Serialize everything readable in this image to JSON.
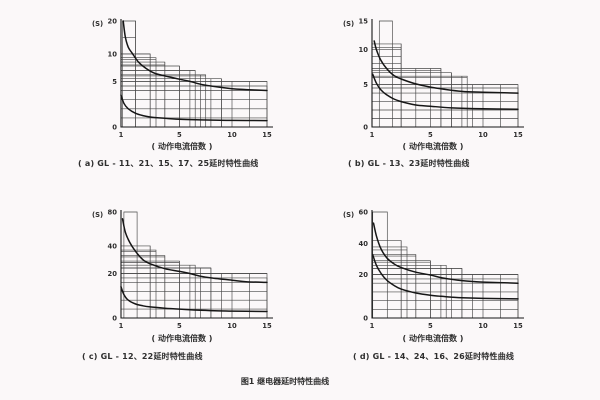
{
  "page": {
    "figure_caption": "图1  继电器延时特性曲线"
  },
  "chart_data": [
    {
      "type": "line",
      "title": "( a) GL - 11、21、15、17、25延时特性曲线",
      "xlabel": "( 动作电流倍数 )",
      "ylabel": "(S)",
      "xlim": [
        1,
        15
      ],
      "ylim": [
        0,
        20
      ],
      "x_ticks": [
        1,
        5,
        10,
        15
      ],
      "y_ticks": [
        0,
        5,
        10,
        20
      ],
      "grid": true,
      "legend_position": "none",
      "x_scale_anchors": [
        [
          1,
          0
        ],
        [
          5,
          0.4
        ],
        [
          10,
          0.76
        ],
        [
          15,
          1
        ]
      ],
      "y_scale_anchors": [
        [
          0,
          0
        ],
        [
          5,
          0.43
        ],
        [
          10,
          0.69
        ],
        [
          20,
          1
        ]
      ],
      "x_grid": [
        2,
        3,
        4,
        5,
        6,
        7,
        8,
        9,
        10,
        12.5
      ],
      "y_grid": [
        1,
        2,
        3,
        4,
        5,
        6,
        7,
        8,
        9,
        10,
        15
      ],
      "tolerance_steps": [
        [
          1.1,
          2,
          20
        ],
        [
          1,
          3,
          10
        ],
        [
          1,
          3.4,
          9.3
        ],
        [
          1,
          4,
          8.5
        ],
        [
          1,
          5,
          7.8
        ],
        [
          1,
          6.5,
          7
        ],
        [
          1,
          7.5,
          6.2
        ],
        [
          1,
          9,
          5.5
        ],
        [
          1,
          15,
          5
        ],
        [
          1,
          15,
          4.5
        ]
      ],
      "series": [
        {
          "name": "upper-limit",
          "x": [
            1.15,
            1.3,
            1.5,
            1.8,
            2.2,
            2.7,
            3.3,
            4,
            5,
            6,
            7,
            8,
            10,
            12,
            15
          ],
          "y": [
            20,
            15,
            12,
            10,
            8.5,
            7.4,
            6.5,
            6,
            5.4,
            5,
            4.7,
            4.5,
            4.2,
            4.1,
            4
          ]
        },
        {
          "name": "lower-limit",
          "x": [
            1,
            1.2,
            1.5,
            2,
            2.5,
            3,
            4,
            5,
            7,
            10,
            15
          ],
          "y": [
            3.5,
            2.6,
            2,
            1.5,
            1.25,
            1.1,
            0.95,
            0.85,
            0.78,
            0.72,
            0.7
          ]
        }
      ]
    },
    {
      "type": "line",
      "title": "( b) GL - 13、23延时特性曲线",
      "xlabel": "( 动作电流倍数 )",
      "ylabel": "(S)",
      "xlim": [
        1,
        15
      ],
      "ylim": [
        0,
        15
      ],
      "x_ticks": [
        1,
        5,
        10,
        15
      ],
      "y_ticks": [
        0,
        5,
        10,
        15
      ],
      "grid": true,
      "legend_position": "none",
      "x_scale_anchors": [
        [
          1,
          0
        ],
        [
          5,
          0.4
        ],
        [
          10,
          0.76
        ],
        [
          15,
          1
        ]
      ],
      "y_scale_anchors": [
        [
          0,
          0
        ],
        [
          5,
          0.4
        ],
        [
          10,
          0.73
        ],
        [
          15,
          1
        ]
      ],
      "x_grid": [
        3,
        4,
        5,
        6,
        7,
        8,
        9,
        10,
        12.5
      ],
      "y_grid": [
        1,
        2,
        3,
        4,
        5,
        6,
        7,
        8,
        9,
        10
      ],
      "tolerance_steps": [
        [
          1.5,
          2.4,
          15
        ],
        [
          1,
          3,
          11
        ],
        [
          1,
          3,
          10.4
        ],
        [
          1,
          6,
          7.3
        ],
        [
          1,
          7,
          6.7
        ],
        [
          1,
          8.5,
          6.2
        ],
        [
          1,
          15,
          5
        ],
        [
          1,
          15,
          4.6
        ]
      ],
      "series": [
        {
          "name": "upper-limit",
          "x": [
            1.15,
            1.3,
            1.6,
            2,
            2.5,
            3,
            4,
            5,
            6,
            8,
            10,
            15
          ],
          "y": [
            11.5,
            10,
            8.5,
            7.3,
            6.3,
            5.8,
            5.1,
            4.7,
            4.5,
            4.2,
            4.1,
            4
          ]
        },
        {
          "name": "lower-limit",
          "x": [
            1.05,
            1.3,
            1.6,
            2,
            2.5,
            3,
            4,
            5,
            7,
            10,
            15
          ],
          "y": [
            6.5,
            5.2,
            4.4,
            3.8,
            3.3,
            3,
            2.6,
            2.45,
            2.25,
            2.15,
            2.1
          ]
        }
      ]
    },
    {
      "type": "line",
      "title": "( c) GL - 12、22延时特性曲线",
      "xlabel": "( 动作电流倍数 )",
      "ylabel": "(S)",
      "xlim": [
        1,
        15
      ],
      "ylim": [
        0,
        80
      ],
      "x_ticks": [
        1,
        5,
        10,
        15
      ],
      "y_ticks": [
        0,
        20,
        40,
        80
      ],
      "grid": true,
      "legend_position": "none",
      "x_scale_anchors": [
        [
          1,
          0
        ],
        [
          5,
          0.4
        ],
        [
          10,
          0.76
        ],
        [
          15,
          1
        ]
      ],
      "y_scale_anchors": [
        [
          0,
          0
        ],
        [
          20,
          0.42
        ],
        [
          40,
          0.68
        ],
        [
          80,
          1
        ]
      ],
      "x_grid": [
        3,
        4,
        5,
        6,
        7,
        8,
        9,
        10,
        12.5
      ],
      "y_grid": [
        4,
        8,
        12,
        16,
        20,
        24,
        28,
        32,
        36
      ],
      "tolerance_steps": [
        [
          1.2,
          2.1,
          80
        ],
        [
          1,
          3,
          40
        ],
        [
          1,
          3.4,
          37
        ],
        [
          1,
          4,
          33
        ],
        [
          1,
          5,
          29
        ],
        [
          1,
          6.5,
          26
        ],
        [
          1,
          8,
          24
        ],
        [
          1,
          15,
          20
        ],
        [
          1,
          15,
          18
        ]
      ],
      "series": [
        {
          "name": "upper-limit",
          "x": [
            1.1,
            1.3,
            1.6,
            2,
            2.5,
            3,
            4,
            5,
            6,
            7,
            8,
            10,
            12,
            15
          ],
          "y": [
            72,
            56,
            44,
            36,
            30,
            27,
            23.5,
            21.5,
            20,
            18.8,
            18,
            17,
            16.3,
            16
          ]
        },
        {
          "name": "lower-limit",
          "x": [
            1,
            1.2,
            1.5,
            2,
            2.5,
            3,
            4,
            5,
            7,
            10,
            15
          ],
          "y": [
            14,
            10.5,
            8,
            6.3,
            5.5,
            5,
            4.4,
            4,
            3.5,
            3.1,
            2.9
          ]
        }
      ]
    },
    {
      "type": "line",
      "title": "( d) GL - 14、24、16、26延时特性曲线",
      "xlabel": "( 动作电流倍数 )",
      "ylabel": "(S)",
      "xlim": [
        1,
        15
      ],
      "ylim": [
        0,
        60
      ],
      "x_ticks": [
        1,
        5,
        10,
        15
      ],
      "y_ticks": [
        0,
        20,
        40,
        60
      ],
      "grid": true,
      "legend_position": "none",
      "x_scale_anchors": [
        [
          1,
          0
        ],
        [
          5,
          0.4
        ],
        [
          10,
          0.76
        ],
        [
          15,
          1
        ]
      ],
      "y_scale_anchors": [
        [
          0,
          0
        ],
        [
          20,
          0.41
        ],
        [
          40,
          0.7
        ],
        [
          60,
          1
        ]
      ],
      "x_grid": [
        3,
        4,
        5,
        6,
        7,
        8,
        9,
        10,
        12.5
      ],
      "y_grid": [
        4,
        8,
        12,
        16,
        20,
        24,
        28,
        32,
        36
      ],
      "tolerance_steps": [
        [
          1.05,
          2.05,
          60
        ],
        [
          1,
          3,
          42
        ],
        [
          1,
          3.4,
          38
        ],
        [
          1,
          4,
          33
        ],
        [
          1,
          5,
          29
        ],
        [
          1,
          6.5,
          26
        ],
        [
          1,
          8,
          24
        ],
        [
          1,
          15,
          20
        ],
        [
          1,
          15,
          18
        ]
      ],
      "series": [
        {
          "name": "upper-limit",
          "x": [
            1.1,
            1.3,
            1.6,
            2,
            2.5,
            3,
            4,
            5,
            6,
            7,
            8,
            10,
            15
          ],
          "y": [
            53,
            45,
            37,
            31,
            27,
            24.5,
            21.5,
            19.8,
            18.6,
            17.8,
            17.2,
            16.5,
            16
          ]
        },
        {
          "name": "lower-limit",
          "x": [
            1.05,
            1.3,
            1.6,
            2,
            2.5,
            3,
            4,
            5,
            6,
            7,
            8,
            10,
            15
          ],
          "y": [
            33,
            26,
            21,
            17.5,
            15,
            13.3,
            11.5,
            10.5,
            10,
            9.6,
            9.3,
            9,
            8.8
          ]
        }
      ]
    }
  ]
}
